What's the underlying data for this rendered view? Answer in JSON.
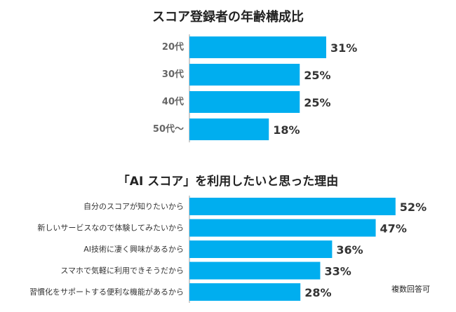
{
  "chart_data": [
    {
      "type": "bar",
      "orientation": "horizontal",
      "title": "スコア登録者の年齢構成比",
      "categories": [
        "20代",
        "30代",
        "40代",
        "50代〜"
      ],
      "values": [
        31,
        25,
        25,
        18
      ],
      "value_labels": [
        "31%",
        "25%",
        "25%",
        "18%"
      ],
      "unit": "%",
      "grid": false,
      "bar_color": "#00aeef"
    },
    {
      "type": "bar",
      "orientation": "horizontal",
      "title": "「AI スコア」を利用したいと思った理由",
      "categories": [
        "自分のスコアが知りたいから",
        "新しいサービスなので体験してみたいから",
        "AI技術に凄く興味があるから",
        "スマホで気軽に利用できそうだから",
        "習慣化をサポートする便利な機能があるから"
      ],
      "values": [
        52,
        47,
        36,
        33,
        28
      ],
      "value_labels": [
        "52%",
        "47%",
        "36%",
        "33%",
        "28%"
      ],
      "unit": "%",
      "grid": false,
      "bar_color": "#00aeef",
      "note": "複数回答可"
    }
  ]
}
